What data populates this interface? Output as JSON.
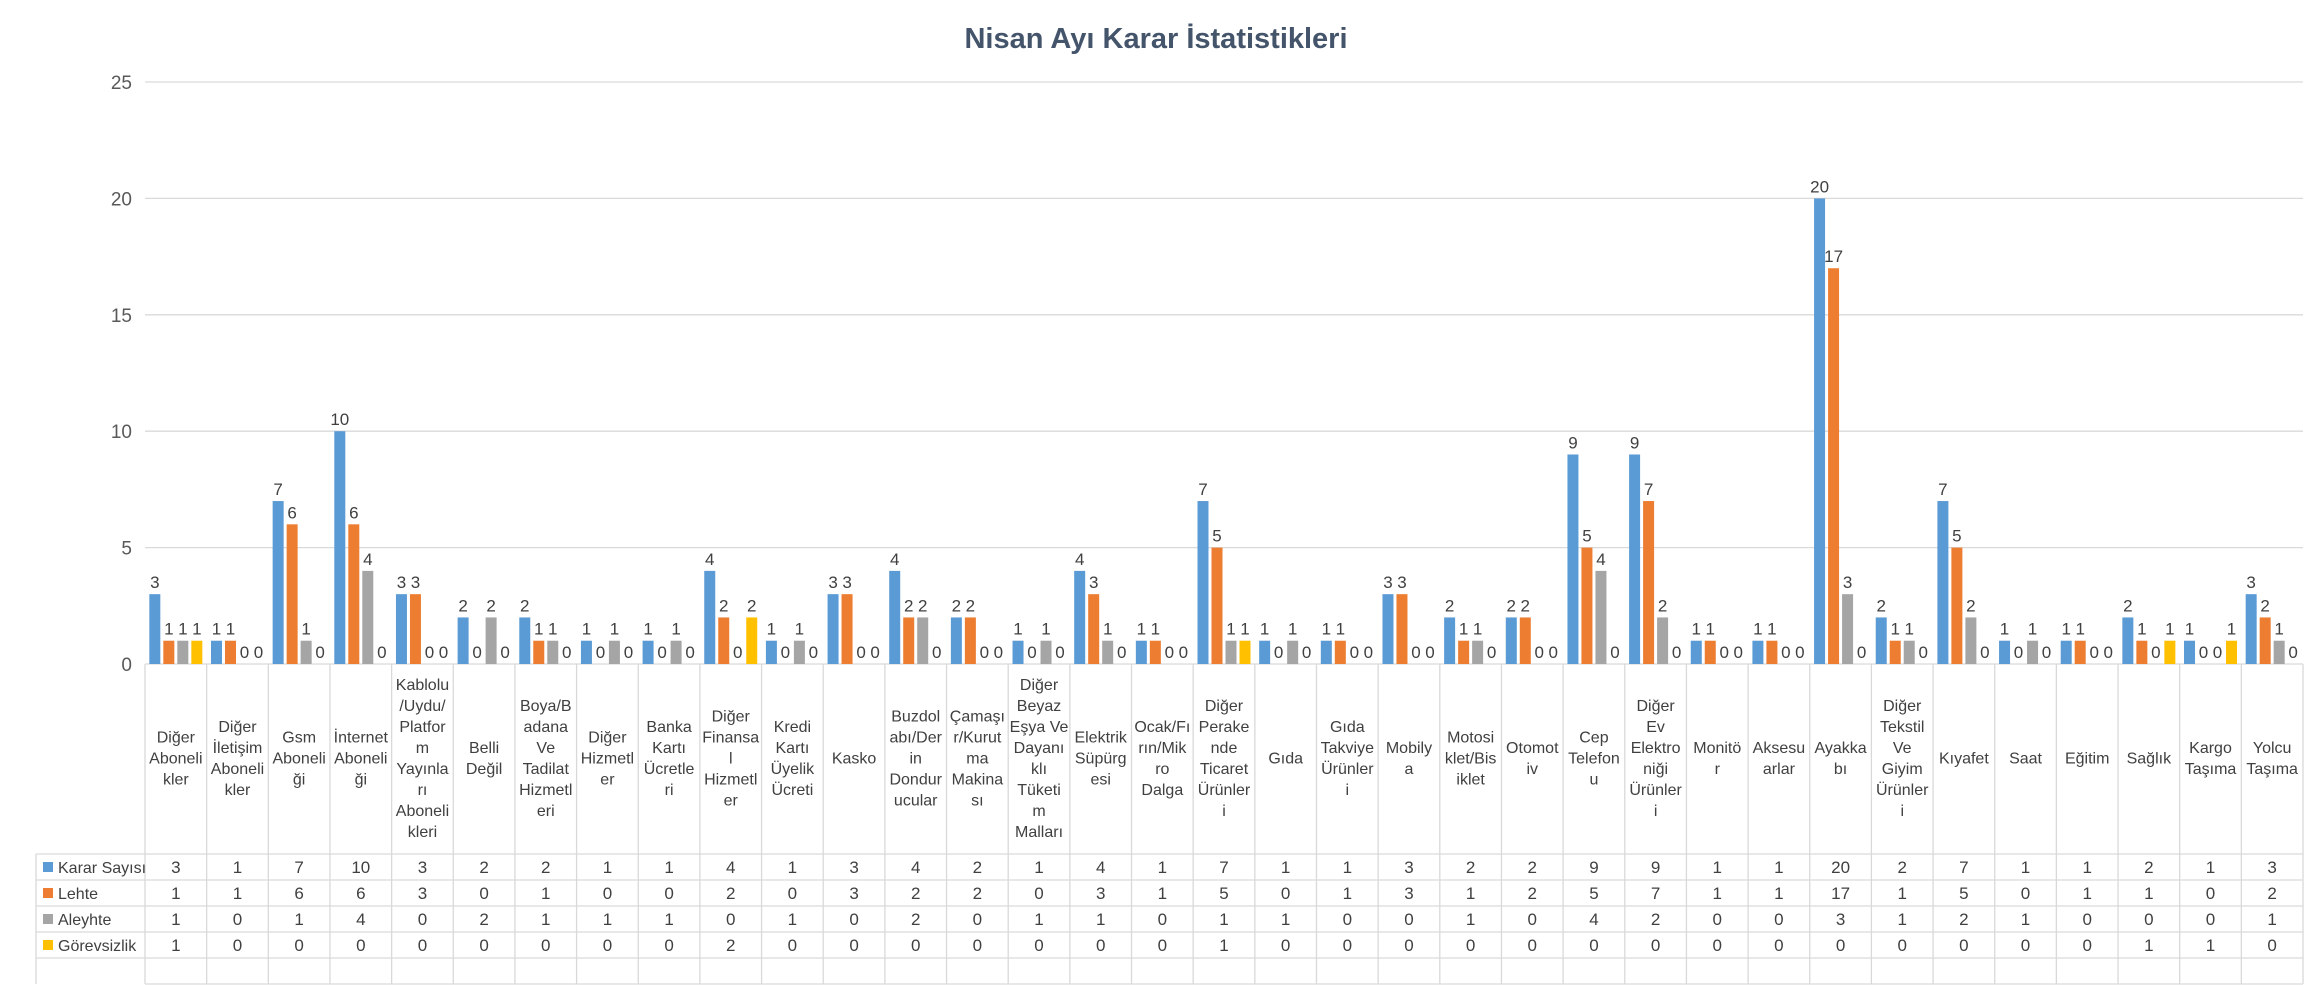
{
  "chart_data": {
    "type": "bar",
    "title": "Nisan Ayı Karar İstatistikleri",
    "ylim": [
      0,
      25
    ],
    "yticks": [
      0,
      5,
      10,
      15,
      20,
      25
    ],
    "grid": true,
    "legend": "table-left",
    "category_labels": [
      [
        "Diğer",
        "Aboneli",
        "kler"
      ],
      [
        "Diğer",
        "İletişim",
        "Aboneli",
        "kler"
      ],
      [
        "Gsm",
        "Aboneli",
        "ği"
      ],
      [
        "İnternet",
        "Aboneli",
        "ği"
      ],
      [
        "Kablolu",
        "/Uydu/",
        "Platfor",
        "m",
        "Yayınla",
        "rı",
        "Aboneli",
        "kleri"
      ],
      [
        "Belli",
        "Değil"
      ],
      [
        "Boya/B",
        "adana",
        "Ve",
        "Tadilat",
        "Hizmetl",
        "eri"
      ],
      [
        "Diğer",
        "Hizmetl",
        "er"
      ],
      [
        "Banka",
        "Kartı",
        "Ücretle",
        "ri"
      ],
      [
        "Diğer",
        "Finansa",
        "l",
        "Hizmetl",
        "er"
      ],
      [
        "Kredi",
        "Kartı",
        "Üyelik",
        "Ücreti"
      ],
      [
        "Kasko"
      ],
      [
        "Buzdol",
        "abı/Der",
        "in",
        "Dondur",
        "ucular"
      ],
      [
        "Çamaşı",
        "r/Kurut",
        "ma",
        "Makina",
        "sı"
      ],
      [
        "Diğer",
        "Beyaz",
        "Eşya Ve",
        "Dayanı",
        "klı",
        "Tüketi",
        "m",
        "Malları"
      ],
      [
        "Elektrik",
        "Süpürg",
        "esi"
      ],
      [
        "Ocak/Fı",
        "rın/Mik",
        "ro",
        "Dalga"
      ],
      [
        "Diğer",
        "Perake",
        "nde",
        "Ticaret",
        "Ürünler",
        "i"
      ],
      [
        "Gıda"
      ],
      [
        "Gıda",
        "Takviye",
        "Ürünler",
        "i"
      ],
      [
        "Mobily",
        "a"
      ],
      [
        "Motosi",
        "klet/Bis",
        "iklet"
      ],
      [
        "Otomot",
        "iv"
      ],
      [
        "Cep",
        "Telefon",
        "u"
      ],
      [
        "Diğer",
        "Ev",
        "Elektro",
        "niği",
        "Ürünler",
        "i"
      ],
      [
        "Monitö",
        "r"
      ],
      [
        "Aksesu",
        "arlar"
      ],
      [
        "Ayakka",
        "bı"
      ],
      [
        "Diğer",
        "Tekstil",
        "Ve",
        "Giyim",
        "Ürünler",
        "i"
      ],
      [
        "Kıyafet"
      ],
      [
        "Saat"
      ],
      [
        "Eğitim"
      ],
      [
        "Sağlık"
      ],
      [
        "Kargo",
        "Taşıma"
      ],
      [
        "Yolcu",
        "Taşıma"
      ]
    ],
    "series": [
      {
        "name": "Karar Sayısı",
        "color": "#5b9bd5",
        "values": [
          3,
          1,
          7,
          10,
          3,
          2,
          2,
          1,
          1,
          4,
          1,
          3,
          4,
          2,
          1,
          4,
          1,
          7,
          1,
          1,
          3,
          2,
          2,
          9,
          9,
          1,
          1,
          20,
          2,
          7,
          1,
          1,
          2,
          1,
          3
        ]
      },
      {
        "name": "Lehte",
        "color": "#ed7d31",
        "values": [
          1,
          1,
          6,
          6,
          3,
          0,
          1,
          0,
          0,
          2,
          0,
          3,
          2,
          2,
          0,
          3,
          1,
          5,
          0,
          1,
          3,
          1,
          2,
          5,
          7,
          1,
          1,
          17,
          1,
          5,
          0,
          1,
          1,
          0,
          2
        ]
      },
      {
        "name": "Aleyhte",
        "color": "#a5a5a5",
        "values": [
          1,
          0,
          1,
          4,
          0,
          2,
          1,
          1,
          1,
          0,
          1,
          0,
          2,
          0,
          1,
          1,
          0,
          1,
          1,
          0,
          0,
          1,
          0,
          4,
          2,
          0,
          0,
          3,
          1,
          2,
          1,
          0,
          0,
          0,
          1
        ]
      },
      {
        "name": "Görevsizlik",
        "color": "#ffc000",
        "values": [
          1,
          0,
          0,
          0,
          0,
          0,
          0,
          0,
          0,
          2,
          0,
          0,
          0,
          0,
          0,
          0,
          0,
          1,
          0,
          0,
          0,
          0,
          0,
          0,
          0,
          0,
          0,
          0,
          0,
          0,
          0,
          0,
          1,
          1,
          0
        ]
      }
    ]
  }
}
